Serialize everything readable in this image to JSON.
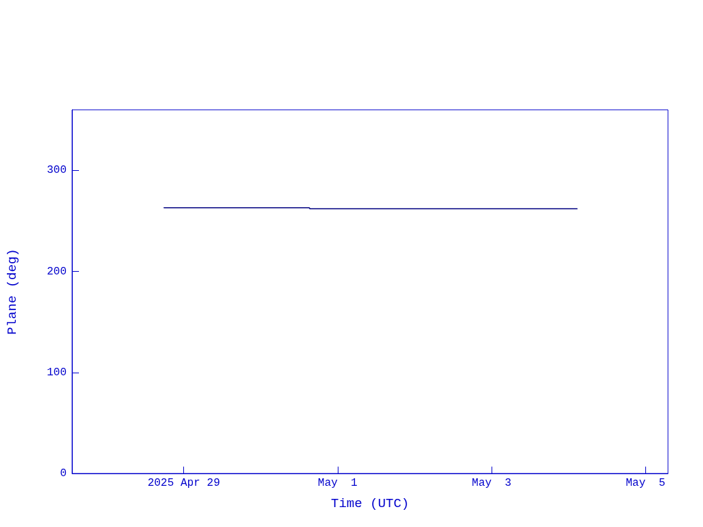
{
  "chart_data": {
    "type": "line",
    "xlabel": "Time (UTC)",
    "ylabel": "Plane (deg)",
    "x": [
      "2025-04-28T17:50",
      "2025-04-30T15:10",
      "2025-04-30T15:20",
      "2025-05-04T02:40"
    ],
    "series": [
      {
        "color": "#000080",
        "values": [
          263,
          263,
          262,
          262
        ]
      }
    ],
    "xlim": [
      "2025-04-27T13:10",
      "2025-05-05T07:00"
    ],
    "xticks": [
      {
        "value": "2025-04-29",
        "label": "2025 Apr 29"
      },
      {
        "value": "2025-05-01",
        "label": "May  1"
      },
      {
        "value": "2025-05-03",
        "label": "May  3"
      },
      {
        "value": "2025-05-05",
        "label": "May  5"
      }
    ],
    "ylim": [
      0,
      360
    ],
    "yticks": [
      0,
      100,
      200,
      300
    ],
    "grid": false,
    "marker": "none",
    "line_style": "solid"
  }
}
